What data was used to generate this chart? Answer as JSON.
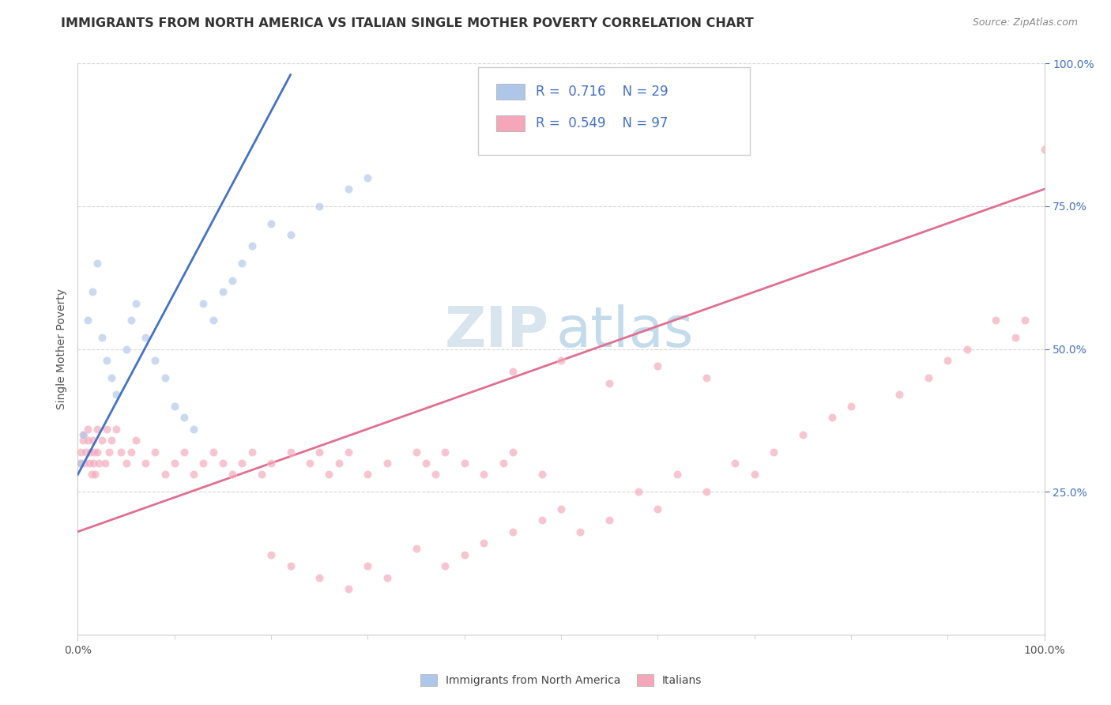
{
  "title": "IMMIGRANTS FROM NORTH AMERICA VS ITALIAN SINGLE MOTHER POVERTY CORRELATION CHART",
  "source": "Source: ZipAtlas.com",
  "ylabel": "Single Mother Poverty",
  "legend_entries": [
    {
      "label": "Immigrants from North America",
      "color": "#aec6e8",
      "line_color": "#4472c4",
      "R": "0.716",
      "N": "29"
    },
    {
      "label": "Italians",
      "color": "#f4a7b9",
      "line_color": "#e07090",
      "R": "0.549",
      "N": "97"
    }
  ],
  "watermark_part1": "ZIP",
  "watermark_part2": "atlas",
  "blue_scatter_x": [
    0.3,
    0.5,
    1.0,
    1.5,
    2.0,
    2.5,
    3.0,
    3.5,
    4.0,
    5.0,
    5.5,
    6.0,
    7.0,
    8.0,
    9.0,
    10.0,
    11.0,
    12.0,
    13.0,
    14.0,
    15.0,
    16.0,
    17.0,
    18.0,
    20.0,
    22.0,
    25.0,
    28.0,
    30.0
  ],
  "blue_scatter_y": [
    30,
    35,
    55,
    60,
    65,
    52,
    48,
    45,
    42,
    50,
    55,
    58,
    52,
    48,
    45,
    40,
    38,
    36,
    58,
    55,
    60,
    62,
    65,
    68,
    72,
    70,
    75,
    78,
    80
  ],
  "pink_scatter_x": [
    0.2,
    0.3,
    0.5,
    0.6,
    0.7,
    0.8,
    1.0,
    1.0,
    1.2,
    1.3,
    1.4,
    1.5,
    1.6,
    1.7,
    1.8,
    2.0,
    2.0,
    2.2,
    2.5,
    2.8,
    3.0,
    3.2,
    3.5,
    4.0,
    4.5,
    5.0,
    5.5,
    6.0,
    7.0,
    8.0,
    9.0,
    10.0,
    11.0,
    12.0,
    13.0,
    14.0,
    15.0,
    16.0,
    17.0,
    18.0,
    19.0,
    20.0,
    22.0,
    24.0,
    25.0,
    26.0,
    27.0,
    28.0,
    30.0,
    32.0,
    35.0,
    36.0,
    37.0,
    38.0,
    40.0,
    42.0,
    44.0,
    45.0,
    48.0,
    20.0,
    22.0,
    25.0,
    28.0,
    30.0,
    32.0,
    35.0,
    38.0,
    40.0,
    42.0,
    45.0,
    48.0,
    50.0,
    52.0,
    55.0,
    58.0,
    60.0,
    62.0,
    65.0,
    68.0,
    70.0,
    72.0,
    75.0,
    78.0,
    80.0,
    85.0,
    88.0,
    90.0,
    92.0,
    95.0,
    97.0,
    98.0,
    100.0,
    45.0,
    50.0,
    55.0,
    60.0,
    65.0
  ],
  "pink_scatter_y": [
    30,
    32,
    34,
    35,
    30,
    32,
    36,
    34,
    30,
    32,
    28,
    34,
    30,
    32,
    28,
    36,
    32,
    30,
    34,
    30,
    36,
    32,
    34,
    36,
    32,
    30,
    32,
    34,
    30,
    32,
    28,
    30,
    32,
    28,
    30,
    32,
    30,
    28,
    30,
    32,
    28,
    30,
    32,
    30,
    32,
    28,
    30,
    32,
    28,
    30,
    32,
    30,
    28,
    32,
    30,
    28,
    30,
    32,
    28,
    14,
    12,
    10,
    8,
    12,
    10,
    15,
    12,
    14,
    16,
    18,
    20,
    22,
    18,
    20,
    25,
    22,
    28,
    25,
    30,
    28,
    32,
    35,
    38,
    40,
    42,
    45,
    48,
    50,
    55,
    52,
    55,
    85,
    46,
    48,
    44,
    47,
    45
  ],
  "blue_line_x": [
    0,
    22
  ],
  "blue_line_y": [
    28,
    98
  ],
  "pink_line_x": [
    0,
    100
  ],
  "pink_line_y": [
    18,
    78
  ],
  "scatter_size": 55,
  "scatter_alpha": 0.65,
  "background_color": "#ffffff",
  "grid_color": "#d8d8d8",
  "grid_linestyle": "--",
  "axis_color": "#cccccc",
  "title_color": "#333333",
  "title_fontsize": 11.5,
  "ylabel_fontsize": 10,
  "legend_fontsize": 12,
  "source_fontsize": 9,
  "right_ytick_color": "#4472c4",
  "right_ytick_labels": [
    "100.0%",
    "75.0%",
    "50.0%",
    "25.0%"
  ],
  "right_ytick_values": [
    100,
    75,
    50,
    25
  ],
  "xlim": [
    0,
    100
  ],
  "ylim": [
    0,
    100
  ],
  "ytick_positions": [
    25,
    50,
    75,
    100
  ]
}
